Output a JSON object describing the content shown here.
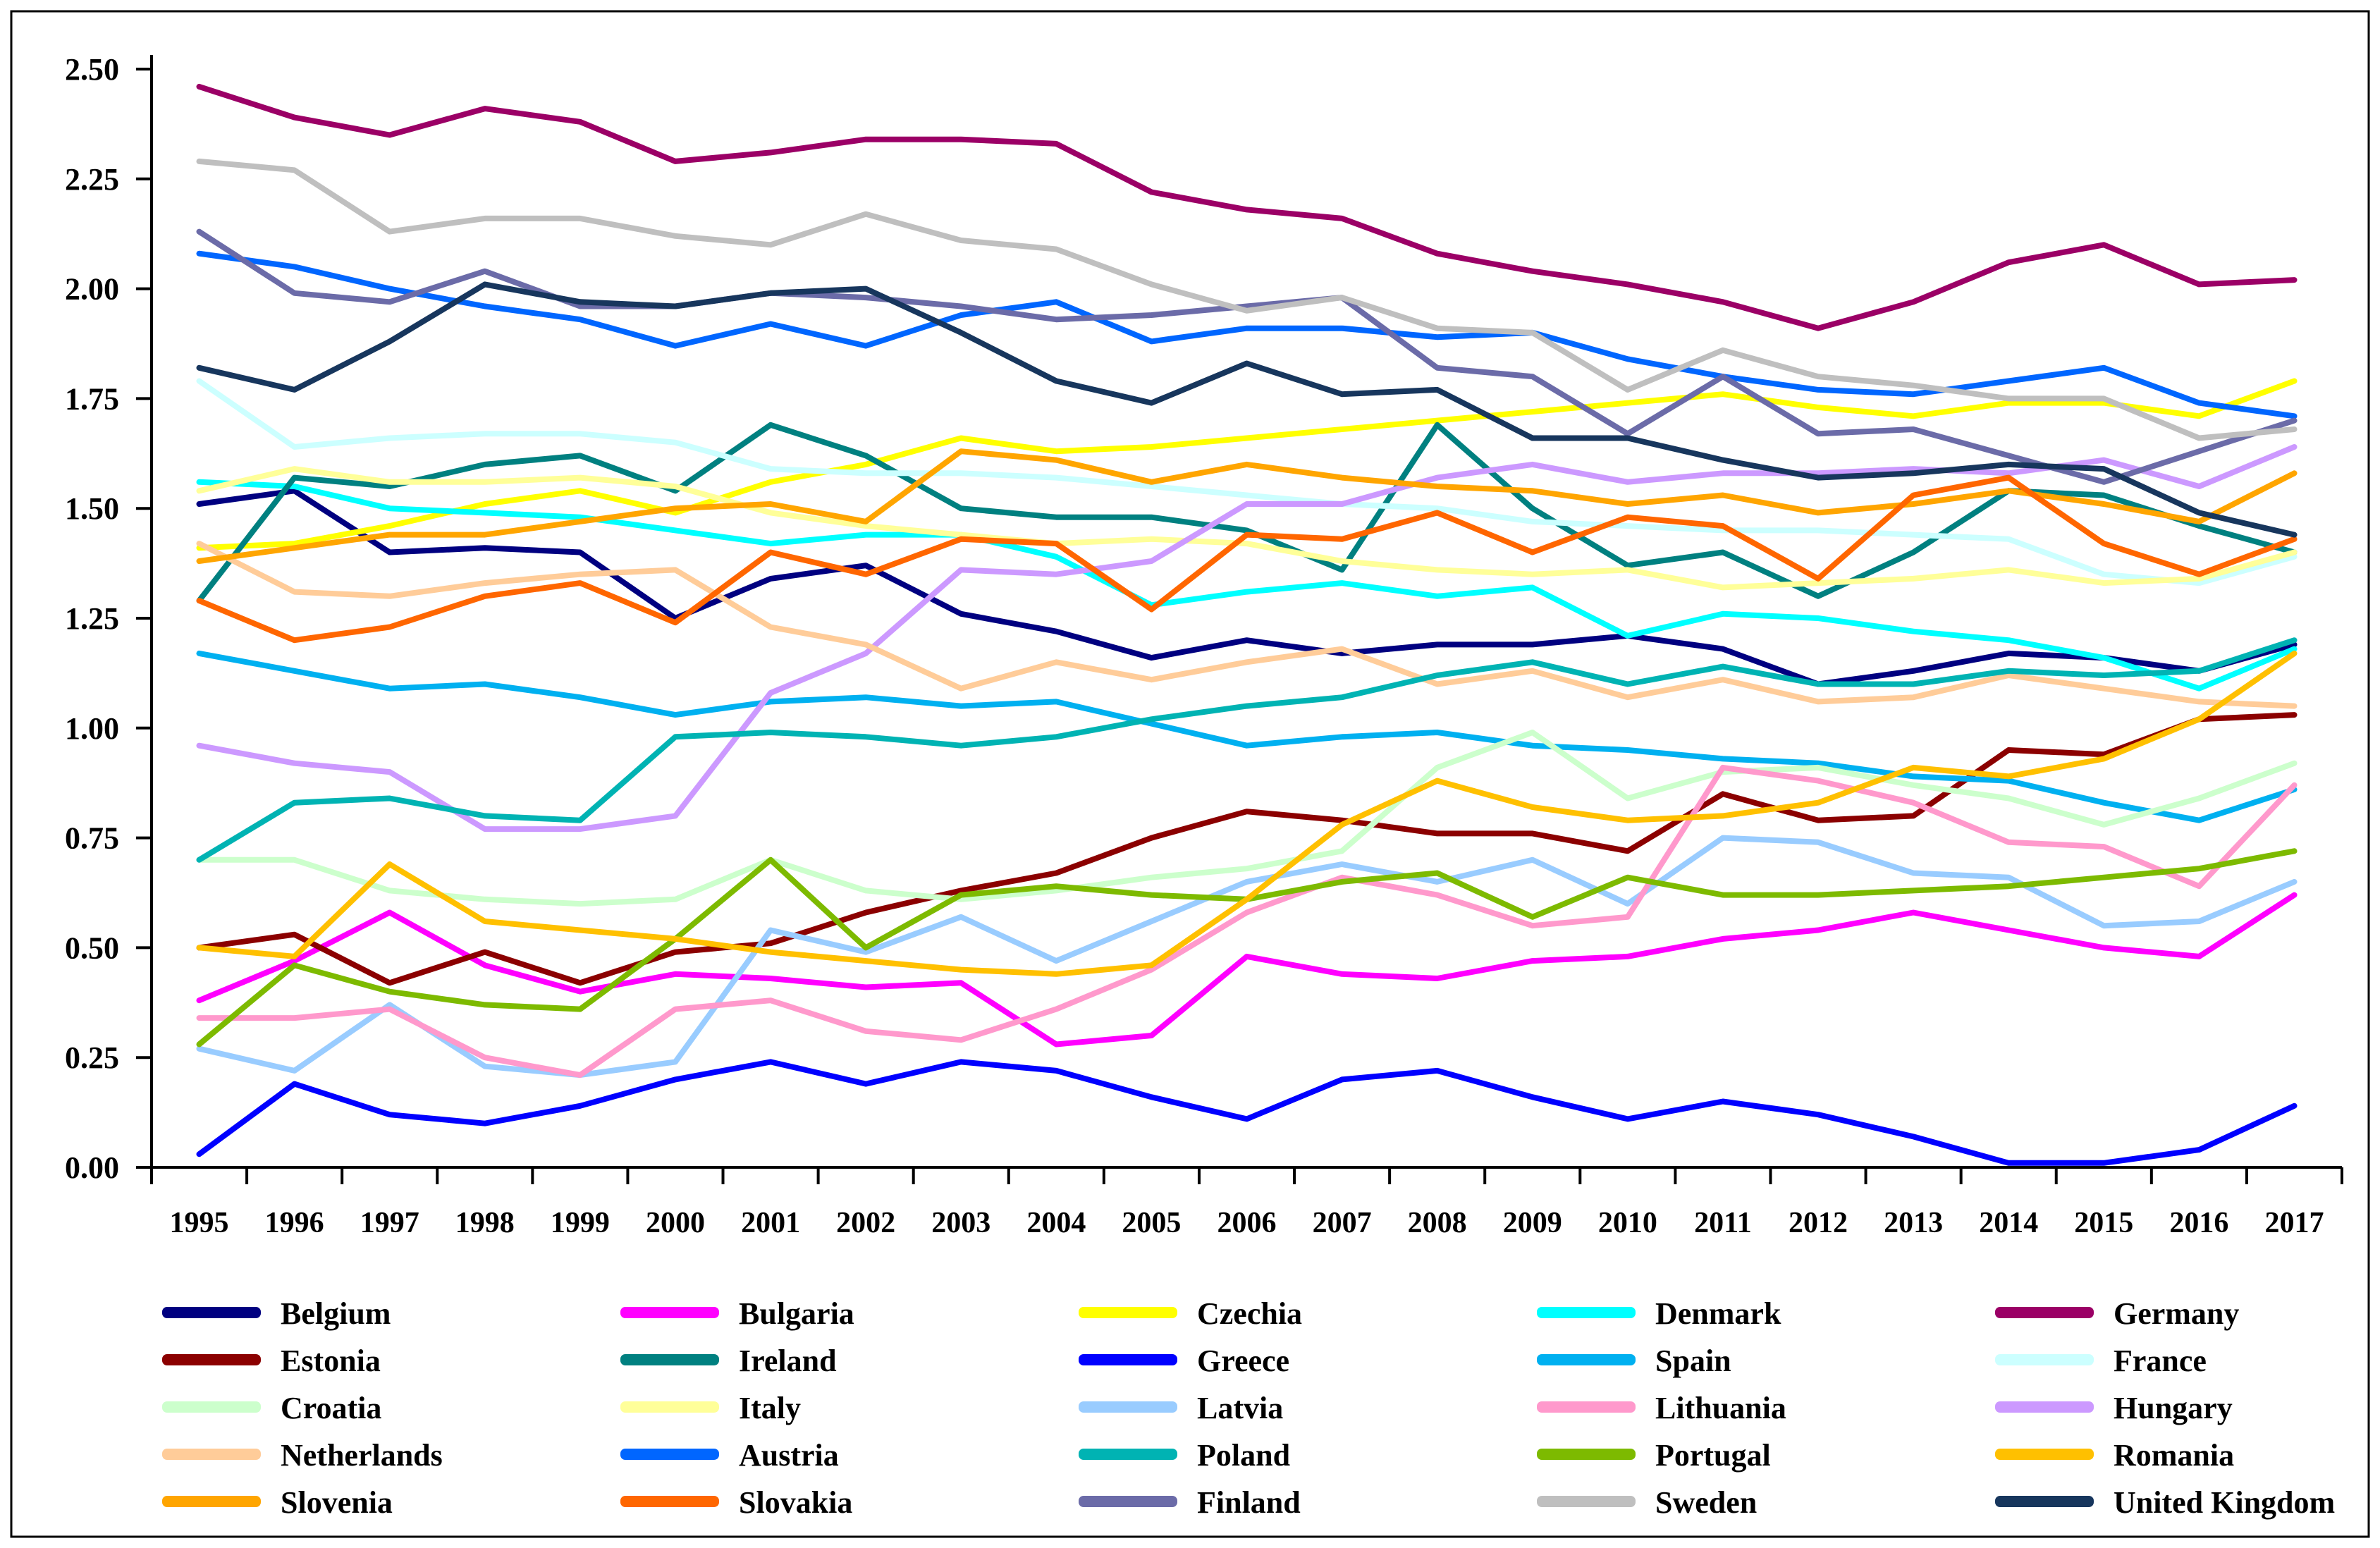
{
  "figure": {
    "background": "#ffffff",
    "border_color": "#000000",
    "axis_color": "#000000"
  },
  "chart_data": {
    "type": "line",
    "title": "",
    "xlabel": "",
    "ylabel": "",
    "x": [
      1995,
      1996,
      1997,
      1998,
      1999,
      2000,
      2001,
      2002,
      2003,
      2004,
      2005,
      2006,
      2007,
      2008,
      2009,
      2010,
      2011,
      2012,
      2013,
      2014,
      2015,
      2016,
      2017
    ],
    "ylim": [
      0.0,
      2.5
    ],
    "ytick_step": 0.25,
    "ytick_labels": [
      "0.00",
      "0.25",
      "0.50",
      "0.75",
      "1.00",
      "1.25",
      "1.50",
      "1.75",
      "2.00",
      "2.25",
      "2.50"
    ],
    "grid": false,
    "legend_position": "bottom",
    "legend_columns": 5,
    "series": [
      {
        "name": "Belgium",
        "color": "#000080",
        "values": [
          1.51,
          1.54,
          1.4,
          1.41,
          1.4,
          1.25,
          1.34,
          1.37,
          1.26,
          1.22,
          1.16,
          1.2,
          1.17,
          1.19,
          1.19,
          1.21,
          1.18,
          1.1,
          1.13,
          1.17,
          1.16,
          1.13,
          1.19
        ]
      },
      {
        "name": "Bulgaria",
        "color": "#FF00FF",
        "values": [
          0.38,
          0.47,
          0.58,
          0.46,
          0.4,
          0.44,
          0.43,
          0.41,
          0.42,
          0.28,
          0.3,
          0.48,
          0.44,
          0.43,
          0.47,
          0.48,
          0.52,
          0.54,
          0.58,
          0.54,
          0.5,
          0.48,
          0.62
        ]
      },
      {
        "name": "Czechia",
        "color": "#FFFF00",
        "values": [
          1.41,
          1.42,
          1.46,
          1.51,
          1.54,
          1.49,
          1.56,
          1.6,
          1.66,
          1.63,
          1.64,
          1.66,
          1.68,
          1.7,
          1.72,
          1.74,
          1.76,
          1.73,
          1.71,
          1.74,
          1.74,
          1.71,
          1.79
        ]
      },
      {
        "name": "Denmark",
        "color": "#00FFFF",
        "values": [
          1.56,
          1.55,
          1.5,
          1.49,
          1.48,
          1.45,
          1.42,
          1.44,
          1.44,
          1.39,
          1.28,
          1.31,
          1.33,
          1.3,
          1.32,
          1.21,
          1.26,
          1.25,
          1.22,
          1.2,
          1.16,
          1.09,
          1.18
        ]
      },
      {
        "name": "Germany",
        "color": "#9B0066",
        "values": [
          2.46,
          2.39,
          2.35,
          2.41,
          2.38,
          2.29,
          2.31,
          2.34,
          2.34,
          2.33,
          2.22,
          2.18,
          2.16,
          2.08,
          2.04,
          2.01,
          1.97,
          1.91,
          1.97,
          2.06,
          2.1,
          2.01,
          2.02
        ]
      },
      {
        "name": "Estonia",
        "color": "#8B0000",
        "values": [
          0.5,
          0.53,
          0.42,
          0.49,
          0.42,
          0.49,
          0.51,
          0.58,
          0.63,
          0.67,
          0.75,
          0.81,
          0.79,
          0.76,
          0.76,
          0.72,
          0.85,
          0.79,
          0.8,
          0.95,
          0.94,
          1.02,
          1.03
        ]
      },
      {
        "name": "Ireland",
        "color": "#008080",
        "values": [
          1.29,
          1.57,
          1.55,
          1.6,
          1.62,
          1.54,
          1.69,
          1.62,
          1.5,
          1.48,
          1.48,
          1.45,
          1.36,
          1.69,
          1.5,
          1.37,
          1.4,
          1.3,
          1.4,
          1.54,
          1.53,
          1.46,
          1.4
        ]
      },
      {
        "name": "Greece",
        "color": "#0000FF",
        "values": [
          0.03,
          0.19,
          0.12,
          0.1,
          0.14,
          0.2,
          0.24,
          0.19,
          0.24,
          0.22,
          0.16,
          0.11,
          0.2,
          0.22,
          0.16,
          0.11,
          0.15,
          0.12,
          0.07,
          0.01,
          0.01,
          0.04,
          0.14
        ]
      },
      {
        "name": "Spain",
        "color": "#00B0F0",
        "values": [
          1.17,
          1.13,
          1.09,
          1.1,
          1.07,
          1.03,
          1.06,
          1.07,
          1.05,
          1.06,
          1.01,
          0.96,
          0.98,
          0.99,
          0.96,
          0.95,
          0.93,
          0.92,
          0.89,
          0.88,
          0.83,
          0.79,
          0.86
        ]
      },
      {
        "name": "France",
        "color": "#CCFFFF",
        "values": [
          1.79,
          1.64,
          1.66,
          1.67,
          1.67,
          1.65,
          1.59,
          1.58,
          1.58,
          1.57,
          1.55,
          1.53,
          1.51,
          1.5,
          1.47,
          1.46,
          1.45,
          1.45,
          1.44,
          1.43,
          1.35,
          1.33,
          1.39
        ]
      },
      {
        "name": "Croatia",
        "color": "#CCFFCC",
        "values": [
          0.7,
          0.7,
          0.63,
          0.61,
          0.6,
          0.61,
          0.7,
          0.63,
          0.61,
          0.63,
          0.66,
          0.68,
          0.72,
          0.91,
          0.99,
          0.84,
          0.9,
          0.91,
          0.87,
          0.84,
          0.78,
          0.84,
          0.92
        ]
      },
      {
        "name": "Italy",
        "color": "#FFFF99",
        "values": [
          1.54,
          1.59,
          1.56,
          1.56,
          1.57,
          1.55,
          1.49,
          1.46,
          1.44,
          1.42,
          1.43,
          1.42,
          1.38,
          1.36,
          1.35,
          1.36,
          1.32,
          1.33,
          1.34,
          1.36,
          1.33,
          1.34,
          1.4
        ]
      },
      {
        "name": "Latvia",
        "color": "#99CCFF",
        "values": [
          0.27,
          0.22,
          0.37,
          0.23,
          0.21,
          0.24,
          0.54,
          0.49,
          0.57,
          0.47,
          0.56,
          0.65,
          0.69,
          0.65,
          0.7,
          0.6,
          0.75,
          0.74,
          0.67,
          0.66,
          0.55,
          0.56,
          0.65
        ]
      },
      {
        "name": "Lithuania",
        "color": "#FF99CC",
        "values": [
          0.34,
          0.34,
          0.36,
          0.25,
          0.21,
          0.36,
          0.38,
          0.31,
          0.29,
          0.36,
          0.45,
          0.58,
          0.66,
          0.62,
          0.55,
          0.57,
          0.91,
          0.88,
          0.83,
          0.74,
          0.73,
          0.64,
          0.87
        ]
      },
      {
        "name": "Hungary",
        "color": "#CC99FF",
        "values": [
          0.96,
          0.92,
          0.9,
          0.77,
          0.77,
          0.8,
          1.08,
          1.17,
          1.36,
          1.35,
          1.38,
          1.51,
          1.51,
          1.57,
          1.6,
          1.56,
          1.58,
          1.58,
          1.59,
          1.58,
          1.61,
          1.55,
          1.64
        ]
      },
      {
        "name": "Netherlands",
        "color": "#FFCC99",
        "values": [
          1.42,
          1.31,
          1.3,
          1.33,
          1.35,
          1.36,
          1.23,
          1.19,
          1.09,
          1.15,
          1.11,
          1.15,
          1.18,
          1.1,
          1.13,
          1.07,
          1.11,
          1.06,
          1.07,
          1.12,
          1.09,
          1.06,
          1.05
        ]
      },
      {
        "name": "Austria",
        "color": "#0066FF",
        "values": [
          2.08,
          2.05,
          2.0,
          1.96,
          1.93,
          1.87,
          1.92,
          1.87,
          1.94,
          1.97,
          1.88,
          1.91,
          1.91,
          1.89,
          1.9,
          1.84,
          1.8,
          1.77,
          1.76,
          1.79,
          1.82,
          1.74,
          1.71
        ]
      },
      {
        "name": "Poland",
        "color": "#00B3B3",
        "values": [
          0.7,
          0.83,
          0.84,
          0.8,
          0.79,
          0.98,
          0.99,
          0.98,
          0.96,
          0.98,
          1.02,
          1.05,
          1.07,
          1.12,
          1.15,
          1.1,
          1.14,
          1.1,
          1.1,
          1.13,
          1.12,
          1.13,
          1.2
        ]
      },
      {
        "name": "Portugal",
        "color": "#7DBA00",
        "values": [
          0.28,
          0.46,
          0.4,
          0.37,
          0.36,
          0.52,
          0.7,
          0.5,
          0.62,
          0.64,
          0.62,
          0.61,
          0.65,
          0.67,
          0.57,
          0.66,
          0.62,
          0.62,
          0.63,
          0.64,
          0.66,
          0.68,
          0.72
        ]
      },
      {
        "name": "Romania",
        "color": "#FFC000",
        "values": [
          0.5,
          0.48,
          0.69,
          0.56,
          0.54,
          0.52,
          0.49,
          0.47,
          0.45,
          0.44,
          0.46,
          0.61,
          0.78,
          0.88,
          0.82,
          0.79,
          0.8,
          0.83,
          0.91,
          0.89,
          0.93,
          1.02,
          1.17
        ]
      },
      {
        "name": "Slovenia",
        "color": "#FFA500",
        "values": [
          1.38,
          1.41,
          1.44,
          1.44,
          1.47,
          1.5,
          1.51,
          1.47,
          1.63,
          1.61,
          1.56,
          1.6,
          1.57,
          1.55,
          1.54,
          1.51,
          1.53,
          1.49,
          1.51,
          1.54,
          1.51,
          1.47,
          1.58
        ]
      },
      {
        "name": "Slovakia",
        "color": "#FF6600",
        "values": [
          1.29,
          1.2,
          1.23,
          1.3,
          1.33,
          1.24,
          1.4,
          1.35,
          1.43,
          1.42,
          1.27,
          1.44,
          1.43,
          1.49,
          1.4,
          1.48,
          1.46,
          1.34,
          1.53,
          1.57,
          1.42,
          1.35,
          1.43
        ]
      },
      {
        "name": "Finland",
        "color": "#6B6BA8",
        "values": [
          2.13,
          1.99,
          1.97,
          2.04,
          1.96,
          1.96,
          1.99,
          1.98,
          1.96,
          1.93,
          1.94,
          1.96,
          1.98,
          1.82,
          1.8,
          1.67,
          1.8,
          1.67,
          1.68,
          1.62,
          1.56,
          1.63,
          1.7
        ]
      },
      {
        "name": "Sweden",
        "color": "#BFBFBF",
        "values": [
          2.29,
          2.27,
          2.13,
          2.16,
          2.16,
          2.12,
          2.1,
          2.17,
          2.11,
          2.09,
          2.01,
          1.95,
          1.98,
          1.91,
          1.9,
          1.77,
          1.86,
          1.8,
          1.78,
          1.75,
          1.75,
          1.66,
          1.68
        ]
      },
      {
        "name": "United Kingdom",
        "color": "#17365D",
        "values": [
          1.82,
          1.77,
          1.88,
          2.01,
          1.97,
          1.96,
          1.99,
          2.0,
          1.9,
          1.79,
          1.74,
          1.83,
          1.76,
          1.77,
          1.66,
          1.66,
          1.61,
          1.57,
          1.58,
          1.6,
          1.59,
          1.49,
          1.44
        ]
      }
    ]
  }
}
